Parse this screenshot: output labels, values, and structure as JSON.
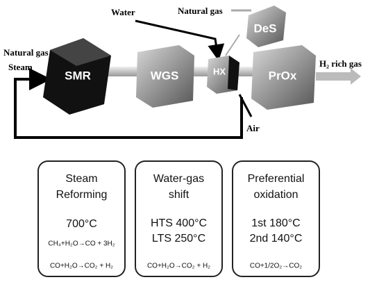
{
  "diagram": {
    "inputs": {
      "water": "Water",
      "natural_gas_top": "Natural gas",
      "natural_gas_left": "Natural gas",
      "steam": "Steam",
      "air": "Air",
      "output": "H₂ rich gas"
    },
    "units": {
      "smr": "SMR",
      "wgs": "WGS",
      "hx": "HX",
      "prox": "PrOx",
      "des": "DeS"
    }
  },
  "panels": [
    {
      "title": [
        "Steam",
        "Reforming"
      ],
      "temperatures": [
        "700°C"
      ],
      "reactions": [
        "CH₄+H₂O→CO + 3H₂",
        "CO+H₂O→CO₂ + H₂"
      ]
    },
    {
      "title": [
        "Water-gas",
        "shift"
      ],
      "temperatures": [
        "HTS 400°C",
        "LTS 250°C"
      ],
      "reactions": [
        "CO+H₂O→CO₂ + H₂"
      ]
    },
    {
      "title": [
        "Preferential",
        "oxidation"
      ],
      "temperatures": [
        "1st 180°C",
        "2nd 140°C"
      ],
      "reactions": [
        "CO+1/2O₂→CO₂"
      ]
    }
  ]
}
